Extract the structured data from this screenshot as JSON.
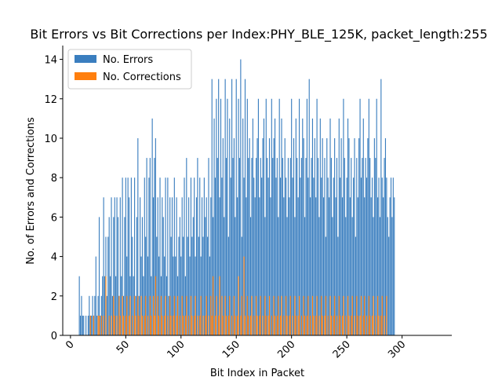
{
  "chart_data": {
    "type": "bar",
    "title": "Bit Errors vs Bit Corrections per Index:PHY_BLE_125K, packet_length:255",
    "xlabel": "Bit Index in Packet",
    "ylabel": "No. of Errors and Corrections",
    "xlim": [
      -7,
      345
    ],
    "ylim": [
      0,
      14.7
    ],
    "xticks": [
      0,
      50,
      100,
      150,
      200,
      250,
      300
    ],
    "yticks": [
      0,
      2,
      4,
      6,
      8,
      10,
      12,
      14
    ],
    "legend_position": "top-left",
    "grid": false,
    "series": [
      {
        "name": "No. Errors",
        "color": "#3a7ebf",
        "start_index": 8,
        "values": [
          3,
          1,
          2,
          1,
          1,
          0,
          1,
          0,
          1,
          2,
          1,
          1,
          2,
          1,
          2,
          4,
          1,
          2,
          6,
          1,
          2,
          3,
          7,
          3,
          5,
          2,
          5,
          6,
          3,
          7,
          2,
          6,
          7,
          3,
          7,
          6,
          2,
          7,
          3,
          8,
          2,
          6,
          8,
          4,
          8,
          7,
          3,
          8,
          5,
          3,
          8,
          2,
          6,
          10,
          2,
          7,
          4,
          6,
          3,
          8,
          5,
          9,
          4,
          8,
          9,
          3,
          11,
          7,
          9,
          10,
          5,
          7,
          4,
          8,
          3,
          7,
          6,
          4,
          8,
          3,
          8,
          2,
          7,
          5,
          7,
          4,
          8,
          4,
          7,
          3,
          5,
          6,
          4,
          7,
          5,
          8,
          3,
          9,
          5,
          7,
          4,
          8,
          5,
          6,
          8,
          4,
          7,
          9,
          5,
          8,
          4,
          7,
          5,
          8,
          6,
          7,
          5,
          9,
          4,
          7,
          13,
          6,
          11,
          8,
          12,
          9,
          13,
          7,
          12,
          8,
          10,
          6,
          13,
          9,
          12,
          5,
          11,
          8,
          13,
          9,
          10,
          6,
          13,
          7,
          12,
          9,
          14,
          5,
          11,
          8,
          13,
          7,
          12,
          9,
          10,
          6,
          9,
          11,
          8,
          7,
          9,
          10,
          12,
          7,
          9,
          8,
          10,
          11,
          6,
          12,
          9,
          8,
          10,
          7,
          12,
          9,
          10,
          11,
          8,
          9,
          6,
          12,
          8,
          11,
          9,
          7,
          10,
          8,
          6,
          9,
          7,
          9,
          12,
          8,
          10,
          6,
          11,
          9,
          7,
          12,
          8,
          9,
          11,
          10,
          6,
          9,
          12,
          8,
          13,
          7,
          9,
          11,
          8,
          10,
          7,
          12,
          9,
          6,
          11,
          8,
          10,
          7,
          9,
          5,
          10,
          8,
          7,
          11,
          9,
          6,
          8,
          10,
          7,
          9,
          5,
          11,
          8,
          10,
          7,
          12,
          9,
          6,
          8,
          11,
          10,
          7,
          9,
          6,
          8,
          10,
          5,
          9,
          7,
          10,
          12,
          8,
          9,
          11,
          7,
          9,
          8,
          10,
          12,
          9,
          7,
          8,
          6,
          10,
          9,
          12,
          7,
          8,
          6,
          13,
          8,
          7,
          9,
          10,
          8,
          6,
          5,
          7,
          8,
          6,
          8,
          7
        ]
      },
      {
        "name": "No. Corrections",
        "color": "#ff7f0e",
        "start_index": 8,
        "values": [
          0,
          0,
          0,
          0,
          0,
          0,
          0,
          0,
          0,
          0,
          1,
          0,
          0,
          1,
          0,
          0,
          0,
          1,
          1,
          0,
          1,
          0,
          1,
          0,
          3,
          0,
          0,
          1,
          0,
          1,
          0,
          2,
          1,
          0,
          1,
          0,
          2,
          1,
          0,
          2,
          1,
          0,
          1,
          2,
          0,
          1,
          2,
          0,
          1,
          0,
          2,
          1,
          0,
          2,
          1,
          0,
          2,
          1,
          0,
          1,
          2,
          0,
          1,
          0,
          2,
          1,
          0,
          2,
          1,
          3,
          0,
          2,
          1,
          0,
          2,
          1,
          0,
          1,
          2,
          0,
          1,
          0,
          2,
          1,
          0,
          1,
          2,
          0,
          1,
          2,
          0,
          1,
          0,
          2,
          1,
          0,
          1,
          2,
          0,
          1,
          0,
          2,
          1,
          0,
          1,
          2,
          0,
          1,
          0,
          1,
          2,
          0,
          1,
          0,
          1,
          2,
          0,
          1,
          0,
          2,
          1,
          3,
          0,
          1,
          2,
          0,
          1,
          3,
          0,
          2,
          1,
          0,
          2,
          1,
          0,
          1,
          2,
          0,
          1,
          0,
          2,
          1,
          0,
          1,
          3,
          0,
          1,
          2,
          0,
          4,
          1,
          0,
          2,
          1,
          0,
          1,
          2,
          0,
          1,
          0,
          2,
          1,
          0,
          1,
          2,
          0,
          1,
          0,
          2,
          1,
          0,
          1,
          2,
          0,
          1,
          0,
          2,
          1,
          0,
          1,
          2,
          0,
          1,
          2,
          0,
          1,
          0,
          2,
          1,
          0,
          1,
          2,
          0,
          1,
          0,
          2,
          1,
          0,
          1,
          2,
          0,
          1,
          0,
          2,
          1,
          0,
          1,
          2,
          0,
          1,
          0,
          2,
          1,
          0,
          1,
          2,
          0,
          1,
          0,
          2,
          1,
          0,
          1,
          2,
          0,
          1,
          0,
          2,
          1,
          0,
          1,
          2,
          0,
          1,
          0,
          2,
          1,
          0,
          1,
          2,
          0,
          1,
          0,
          2,
          1,
          0,
          1,
          2,
          0,
          1,
          0,
          2,
          1,
          0,
          1,
          2,
          0,
          1,
          2,
          0,
          1,
          0,
          2,
          1,
          0,
          1,
          2,
          0,
          1,
          0,
          2,
          1,
          0,
          1,
          2,
          0,
          1,
          0,
          2
        ]
      }
    ]
  }
}
